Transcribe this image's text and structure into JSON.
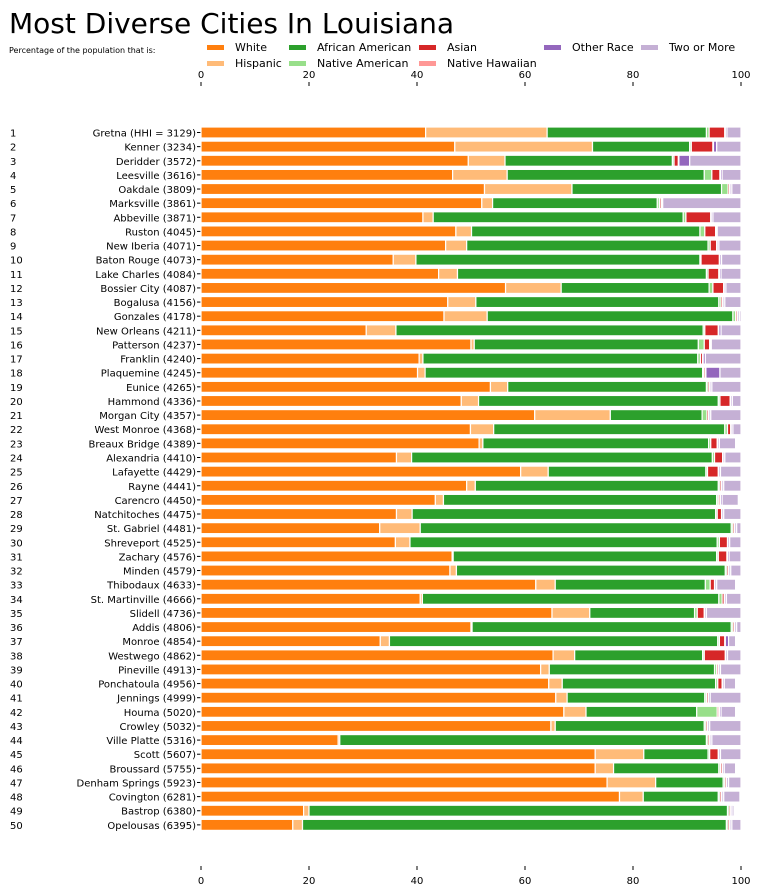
{
  "title": "Most Diverse Cities In Louisiana",
  "subtitle": "Percentage of the population that is:",
  "colors": {
    "White": "#ff7f0e",
    "Hispanic": "#ffbb78",
    "African American": "#2ca02c",
    "Native American": "#98df8a",
    "Asian": "#d62728",
    "Native Hawaiian": "#ff9896",
    "Other Race": "#9467bd",
    "Two or More": "#c5b0d5"
  },
  "chart_data": {
    "type": "bar",
    "orientation": "horizontal",
    "stacked": true,
    "xlim": [
      0,
      100
    ],
    "xticks": [
      0,
      20,
      40,
      60,
      80,
      100
    ],
    "grid": false,
    "legend_position": "top",
    "ranks": [
      "1",
      "2",
      "3",
      "4",
      "5",
      "6",
      "7",
      "8",
      "9",
      "10",
      "11",
      "12",
      "13",
      "14",
      "15",
      "16",
      "17",
      "18",
      "19",
      "20",
      "21",
      "22",
      "23",
      "24",
      "25",
      "26",
      "27",
      "28",
      "29",
      "30",
      "31",
      "32",
      "33",
      "34",
      "35",
      "36",
      "37",
      "38",
      "39",
      "40",
      "41",
      "42",
      "43",
      "44",
      "45",
      "46",
      "47",
      "48",
      "49",
      "50"
    ],
    "categories": [
      "Gretna (HHI = 3129)",
      "Kenner (3234)",
      "Deridder (3572)",
      "Leesville (3616)",
      "Oakdale (3809)",
      "Marksville (3861)",
      "Abbeville (3871)",
      "Ruston (4045)",
      "New Iberia (4071)",
      "Baton Rouge (4073)",
      "Lake Charles (4084)",
      "Bossier City (4087)",
      "Bogalusa (4156)",
      "Gonzales (4178)",
      "New Orleans (4211)",
      "Patterson (4237)",
      "Franklin (4240)",
      "Plaquemine (4245)",
      "Eunice (4265)",
      "Hammond (4336)",
      "Morgan City (4357)",
      "West Monroe (4368)",
      "Breaux Bridge (4389)",
      "Alexandria (4410)",
      "Lafayette (4429)",
      "Rayne (4441)",
      "Carencro (4450)",
      "Natchitoches (4475)",
      "St. Gabriel (4481)",
      "Shreveport (4525)",
      "Zachary (4576)",
      "Minden (4579)",
      "Thibodaux (4633)",
      "St. Martinville (4666)",
      "Slidell (4736)",
      "Addis (4806)",
      "Monroe (4854)",
      "Westwego (4862)",
      "Pineville (4913)",
      "Ponchatoula (4956)",
      "Jennings (4999)",
      "Houma (5020)",
      "Crowley (5032)",
      "Ville Platte (5316)",
      "Scott (5607)",
      "Broussard (5755)",
      "Denham Springs (5923)",
      "Covington (6281)",
      "Bastrop (6380)",
      "Opelousas (6395)"
    ],
    "series": [
      {
        "name": "White",
        "values": [
          41.6,
          47.0,
          49.5,
          46.6,
          52.5,
          52.0,
          41.1,
          47.2,
          45.3,
          35.6,
          44.0,
          56.4,
          45.7,
          45.0,
          30.6,
          50.0,
          40.4,
          40.1,
          53.6,
          48.2,
          61.8,
          49.9,
          51.5,
          36.2,
          59.2,
          49.2,
          43.4,
          36.2,
          33.1,
          36.0,
          46.5,
          46.1,
          62.0,
          40.6,
          65.0,
          50.0,
          33.2,
          65.2,
          62.9,
          64.4,
          65.7,
          67.2,
          64.8,
          25.4,
          73.0,
          73.0,
          75.2,
          77.5,
          19.0,
          17.0
        ]
      },
      {
        "name": "Hispanic",
        "values": [
          22.5,
          25.5,
          6.8,
          10.1,
          16.2,
          2.0,
          1.9,
          2.9,
          3.9,
          4.2,
          3.5,
          10.3,
          5.2,
          8.0,
          5.5,
          0.6,
          0.7,
          1.4,
          3.2,
          3.2,
          14.0,
          4.3,
          0.7,
          2.8,
          5.1,
          1.6,
          1.5,
          2.9,
          7.5,
          2.7,
          0.2,
          1.2,
          3.6,
          0.4,
          7.0,
          0.2,
          1.7,
          4.0,
          1.6,
          2.5,
          2.1,
          4.1,
          0.8,
          0.3,
          9.0,
          3.4,
          9.0,
          4.4,
          1.0,
          1.8
        ]
      },
      {
        "name": "African American",
        "values": [
          29.5,
          18.0,
          31.0,
          36.5,
          27.7,
          30.5,
          46.3,
          42.3,
          44.7,
          52.6,
          46.1,
          27.4,
          45.0,
          45.5,
          56.9,
          41.5,
          50.9,
          51.4,
          36.8,
          44.4,
          17.0,
          42.8,
          41.8,
          55.7,
          29.2,
          45.0,
          50.6,
          56.2,
          57.6,
          56.9,
          48.8,
          49.8,
          27.8,
          54.9,
          19.4,
          48.0,
          60.8,
          23.7,
          30.6,
          28.4,
          25.5,
          20.5,
          27.6,
          67.9,
          11.9,
          19.5,
          12.5,
          13.9,
          77.5,
          78.5
        ]
      },
      {
        "name": "Native American",
        "values": [
          0.5,
          0.3,
          0.3,
          1.4,
          1.2,
          0.4,
          0.5,
          0.9,
          0.4,
          0.2,
          0.3,
          0.7,
          0.4,
          0.5,
          0.3,
          1.1,
          0.5,
          0.2,
          0.3,
          0.3,
          0.9,
          0.5,
          0.4,
          0.4,
          0.3,
          0.3,
          0.3,
          0.3,
          0.3,
          0.4,
          0.3,
          0.3,
          0.9,
          0.6,
          0.5,
          0.3,
          0.3,
          0.3,
          0.4,
          0.4,
          0.3,
          3.8,
          0.3,
          0.3,
          0.3,
          0.3,
          0.3,
          0.3,
          0.3,
          0.3
        ]
      },
      {
        "name": "Asian",
        "values": [
          2.9,
          4.0,
          0.8,
          1.5,
          0.3,
          0.3,
          4.6,
          2.0,
          1.2,
          3.4,
          2.0,
          2.0,
          0.3,
          0.3,
          2.5,
          1.0,
          0.4,
          0.3,
          0.3,
          1.9,
          0.3,
          0.6,
          1.2,
          1.5,
          2.0,
          0.3,
          0.3,
          0.8,
          0.3,
          1.5,
          1.6,
          0.3,
          0.8,
          0.4,
          1.3,
          0.3,
          1.0,
          3.9,
          0.3,
          0.8,
          0.3,
          0.3,
          0.3,
          0.3,
          1.6,
          0.3,
          0.3,
          0.3,
          0.3,
          0.3
        ]
      },
      {
        "name": "Native Hawaiian",
        "values": [
          0.1,
          0.1,
          0.1,
          0.1,
          0.1,
          0.1,
          0.1,
          0.1,
          0.1,
          0.1,
          0.1,
          0.1,
          0.1,
          0.1,
          0.1,
          0.1,
          0.1,
          0.1,
          0.1,
          0.1,
          0.1,
          0.1,
          0.1,
          0.1,
          0.1,
          0.1,
          0.1,
          0.1,
          0.1,
          0.1,
          0.1,
          0.1,
          0.1,
          0.1,
          0.1,
          0.1,
          0.1,
          0.1,
          0.1,
          0.1,
          0.1,
          0.1,
          0.1,
          0.1,
          0.1,
          0.1,
          0.1,
          0.1,
          0.1,
          0.1
        ]
      },
      {
        "name": "Other Race",
        "values": [
          0.3,
          0.6,
          2.0,
          0.3,
          0.3,
          0.2,
          0.3,
          0.2,
          0.3,
          0.3,
          0.3,
          0.3,
          0.3,
          0.3,
          0.4,
          0.2,
          0.4,
          2.6,
          0.3,
          0.3,
          0.3,
          0.3,
          0.3,
          0.3,
          0.3,
          0.3,
          0.3,
          0.3,
          0.3,
          0.3,
          0.3,
          0.3,
          0.3,
          0.3,
          0.3,
          0.3,
          0.6,
          0.3,
          0.3,
          0.3,
          0.3,
          0.3,
          0.3,
          0.3,
          0.3,
          0.3,
          0.3,
          0.3,
          0.3,
          0.3
        ]
      },
      {
        "name": "Two or More",
        "values": [
          2.6,
          4.5,
          9.5,
          3.5,
          1.7,
          14.5,
          5.2,
          4.4,
          4.1,
          3.6,
          3.7,
          2.8,
          3.0,
          0.3,
          3.7,
          5.5,
          6.6,
          3.9,
          5.6,
          1.6,
          5.6,
          1.5,
          3.0,
          3.0,
          3.8,
          3.2,
          3.0,
          3.2,
          0.8,
          2.1,
          2.2,
          2.0,
          3.5,
          2.7,
          6.4,
          1.0,
          1.3,
          2.5,
          3.8,
          2.1,
          5.7,
          2.7,
          5.9,
          5.7,
          3.8,
          2.1,
          2.7,
          3.0,
          0.3,
          1.7
        ]
      }
    ]
  }
}
